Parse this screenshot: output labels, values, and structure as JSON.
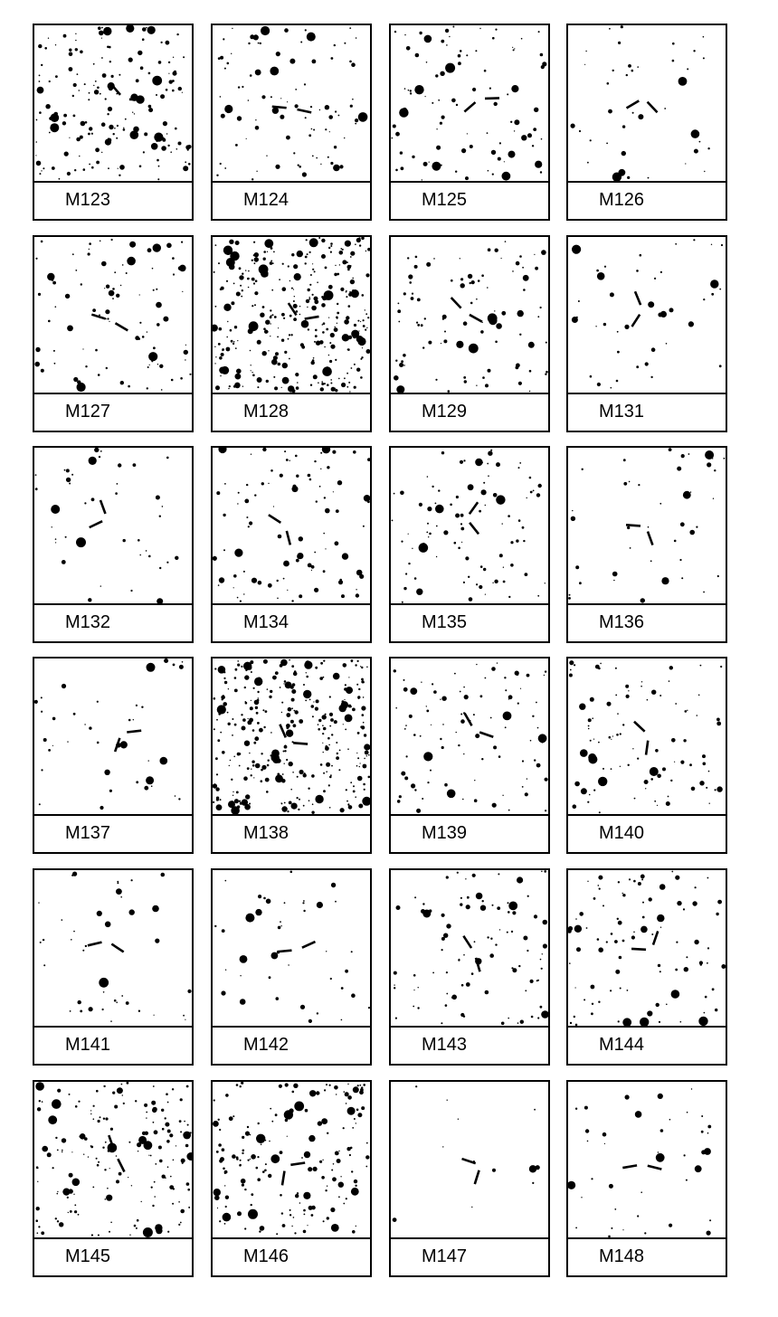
{
  "figure": {
    "panels": [
      {
        "label": "M123",
        "density": "high"
      },
      {
        "label": "M124",
        "density": "medium"
      },
      {
        "label": "M125",
        "density": "medium"
      },
      {
        "label": "M126",
        "density": "low"
      },
      {
        "label": "M127",
        "density": "medium"
      },
      {
        "label": "M128",
        "density": "very-high"
      },
      {
        "label": "M129",
        "density": "medium"
      },
      {
        "label": "M131",
        "density": "low"
      },
      {
        "label": "M132",
        "density": "low"
      },
      {
        "label": "M134",
        "density": "medium"
      },
      {
        "label": "M135",
        "density": "medium"
      },
      {
        "label": "M136",
        "density": "low"
      },
      {
        "label": "M137",
        "density": "low"
      },
      {
        "label": "M138",
        "density": "very-high"
      },
      {
        "label": "M139",
        "density": "medium"
      },
      {
        "label": "M140",
        "density": "medium"
      },
      {
        "label": "M141",
        "density": "low"
      },
      {
        "label": "M142",
        "density": "low"
      },
      {
        "label": "M143",
        "density": "medium"
      },
      {
        "label": "M144",
        "density": "medium"
      },
      {
        "label": "M145",
        "density": "high"
      },
      {
        "label": "M146",
        "density": "high"
      },
      {
        "label": "M147",
        "density": "very-low"
      },
      {
        "label": "M148",
        "density": "low"
      }
    ],
    "colors": {
      "ink": "#000000",
      "paper": "#ffffff"
    }
  }
}
